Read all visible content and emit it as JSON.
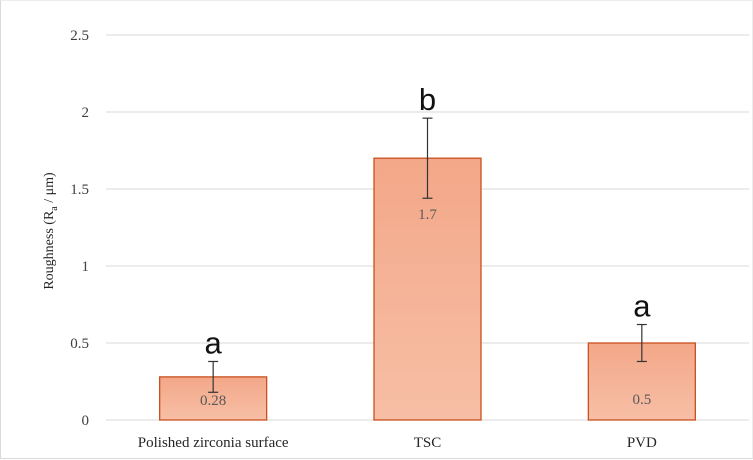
{
  "chart_data": {
    "type": "bar",
    "categories": [
      "Polished zirconia  surface",
      "TSC",
      "PVD"
    ],
    "values": [
      0.28,
      1.7,
      0.5
    ],
    "error_plus": [
      0.1,
      0.26,
      0.12
    ],
    "error_minus": [
      0.1,
      0.26,
      0.12
    ],
    "data_labels": [
      "0.28",
      "1.7",
      "0.5"
    ],
    "significance_labels": [
      "a",
      "b",
      "a"
    ],
    "ylabel": {
      "main": "Roughness (R",
      "subscript": "a",
      "rest": " / μm)"
    },
    "yticks": [
      "0",
      "0.5",
      "1",
      "1.5",
      "2",
      "2.5"
    ],
    "ylim": [
      0,
      2.5
    ],
    "grid": true,
    "colors": {
      "bar_fill_top": "#f3a788",
      "bar_fill_bottom": "#f7bfa6",
      "bar_stroke": "#c8501e",
      "grid": "#d9d9d9",
      "error_bar": "#333333"
    }
  }
}
